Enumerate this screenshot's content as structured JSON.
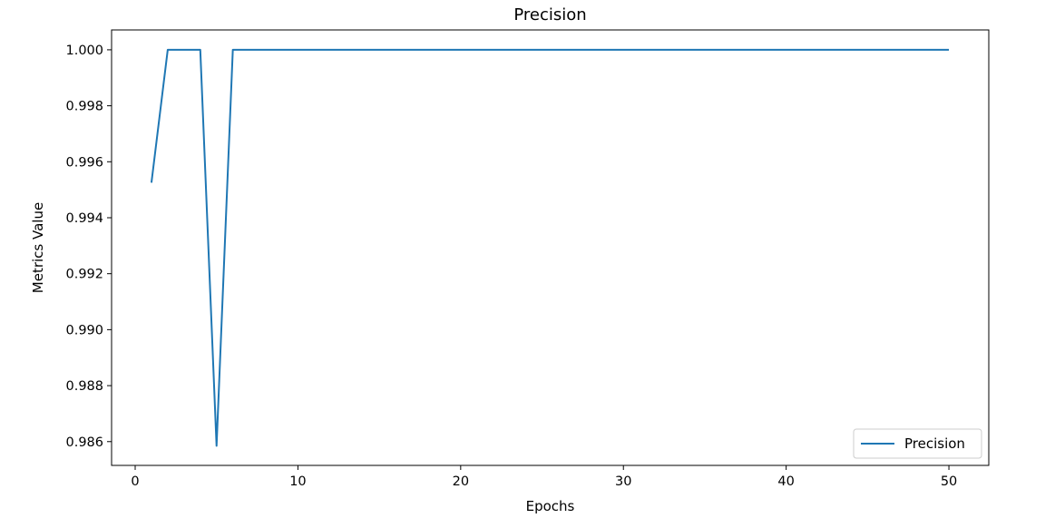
{
  "chart_data": {
    "type": "line",
    "title": "Precision",
    "xlabel": "Epochs",
    "ylabel": "Metrics Value",
    "xlim": [
      -1.45,
      52.45
    ],
    "ylim": [
      0.98515,
      1.00071
    ],
    "xticks": [
      0,
      10,
      20,
      30,
      40,
      50
    ],
    "xtick_labels": [
      "0",
      "10",
      "20",
      "30",
      "40",
      "50"
    ],
    "yticks": [
      0.986,
      0.988,
      0.99,
      0.992,
      0.994,
      0.996,
      0.998,
      1.0
    ],
    "ytick_labels": [
      "0.986",
      "0.988",
      "0.990",
      "0.992",
      "0.994",
      "0.996",
      "0.998",
      "1.000"
    ],
    "grid": false,
    "legend_position": "lower-right",
    "series": [
      {
        "name": "Precision",
        "color": "#1f77b4",
        "x": [
          1,
          2,
          3,
          4,
          5,
          6,
          7,
          8,
          9,
          10,
          11,
          12,
          13,
          14,
          15,
          16,
          17,
          18,
          19,
          20,
          21,
          22,
          23,
          24,
          25,
          26,
          27,
          28,
          29,
          30,
          31,
          32,
          33,
          34,
          35,
          36,
          37,
          38,
          39,
          40,
          41,
          42,
          43,
          44,
          45,
          46,
          47,
          48,
          49,
          50
        ],
        "values": [
          0.99525,
          1.0,
          1.0,
          1.0,
          0.98585,
          1.0,
          1.0,
          1.0,
          1.0,
          1.0,
          1.0,
          1.0,
          1.0,
          1.0,
          1.0,
          1.0,
          1.0,
          1.0,
          1.0,
          1.0,
          1.0,
          1.0,
          1.0,
          1.0,
          1.0,
          1.0,
          1.0,
          1.0,
          1.0,
          1.0,
          1.0,
          1.0,
          1.0,
          1.0,
          1.0,
          1.0,
          1.0,
          1.0,
          1.0,
          1.0,
          1.0,
          1.0,
          1.0,
          1.0,
          1.0,
          1.0,
          1.0,
          1.0,
          1.0,
          1.0
        ]
      }
    ]
  }
}
